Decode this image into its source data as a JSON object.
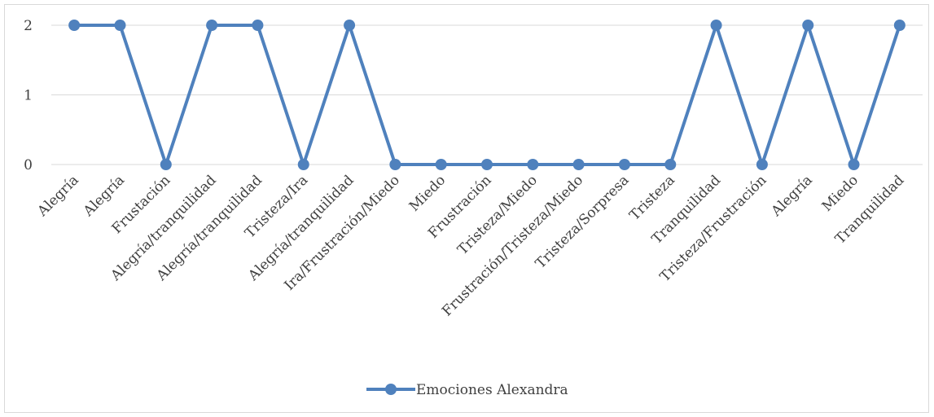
{
  "chart_data": {
    "type": "line",
    "categories": [
      "Alegría",
      "Alegría",
      "Frustación",
      "Alegría/tranquilidad",
      "Alegría/tranquilidad",
      "Tristeza/Ira",
      "Alegría/tranquilidad",
      "Ira/Frustración/Miedo",
      "Miedo",
      "Frustración",
      "Tristeza/Miedo",
      "Frustración/Tristeza/Miedo",
      "Tristeza/Sorpresa",
      "Tristeza",
      "Tranquilidad",
      "Tristeza/Frustración",
      "Alegría",
      "Miedo",
      "Tranquilidad"
    ],
    "series": [
      {
        "name": "Emociones Alexandra",
        "values": [
          2,
          2,
          0,
          2,
          2,
          0,
          2,
          0,
          0,
          0,
          0,
          0,
          0,
          0,
          2,
          0,
          2,
          0,
          2
        ],
        "color": "#4f81bd"
      }
    ],
    "yticks": [
      "0",
      "1",
      "2"
    ],
    "ylim": [
      0,
      2
    ],
    "grid": true,
    "legend": "bottom",
    "gridline_color": "#d9d9d9"
  }
}
